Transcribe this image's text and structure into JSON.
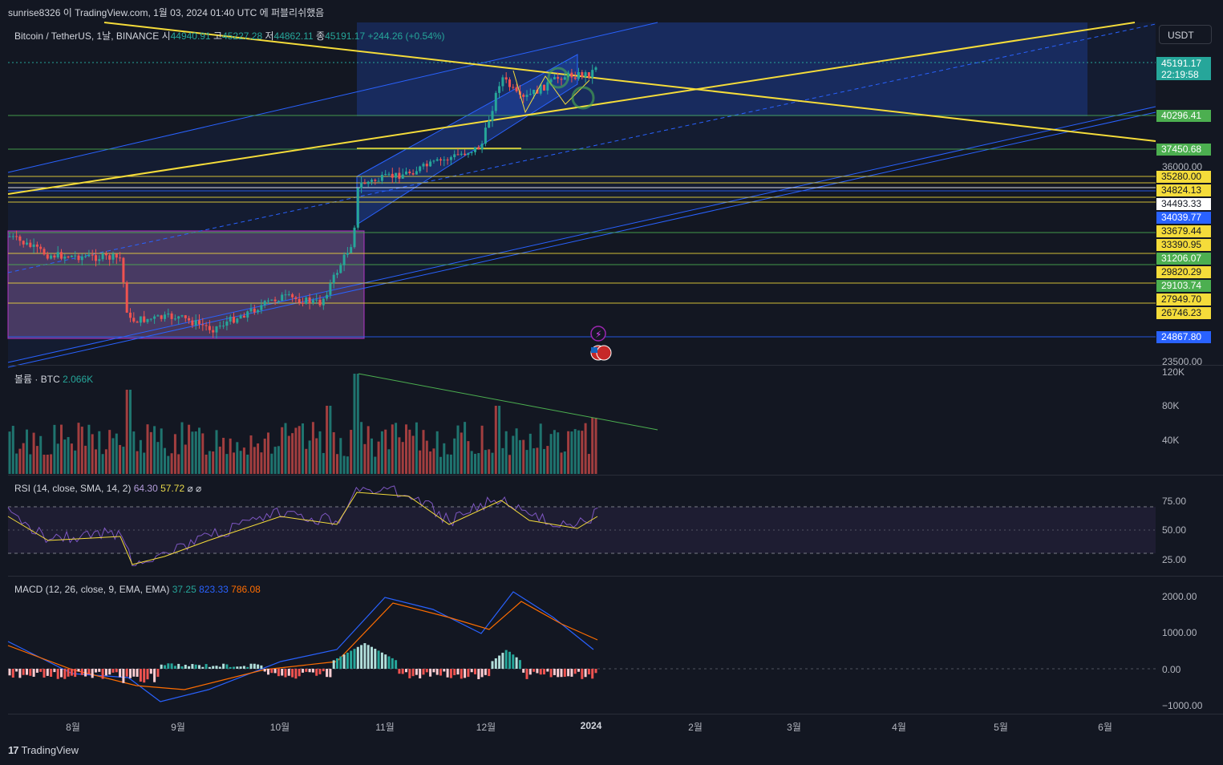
{
  "header": {
    "publish_line": "sunrise8326 이 TradingView.com, 1월 03, 2024 01:40 UTC 에 퍼블리쉬했음"
  },
  "colors": {
    "bg": "#131722",
    "up": "#26a69a",
    "down": "#ef5350",
    "trend_yellow": "#f5dc3a",
    "channel_blue": "#2962ff",
    "rsi": "#7e57c2",
    "macd": "#2962ff",
    "signal": "#ff6d00"
  },
  "main_legend": {
    "symbol": "Bitcoin / TetherUS, 1날, BINANCE",
    "open_label": "시",
    "open": "44940.91",
    "high_label": "고",
    "high": "45227.28",
    "low_label": "저",
    "low": "44862.11",
    "close_label": "종",
    "close": "45191.17",
    "change": "+244.26 (+0.54%)"
  },
  "currency_button": "USDT",
  "current_price": {
    "value": "45191.17",
    "countdown": "22:19:58"
  },
  "price_tags": [
    {
      "value": "40296.41",
      "bg": "#4caf50"
    },
    {
      "value": "37450.68",
      "bg": "#4caf50"
    },
    {
      "value": "35280.00",
      "bg": "#f5dc3a"
    },
    {
      "value": "34824.13",
      "bg": "#f5dc3a"
    },
    {
      "value": "34493.33",
      "bg": "#ffffff"
    },
    {
      "value": "34039.77",
      "bg": "#2962ff"
    },
    {
      "value": "33679.44",
      "bg": "#f5dc3a"
    },
    {
      "value": "33390.95",
      "bg": "#f5dc3a"
    },
    {
      "value": "31206.07",
      "bg": "#4caf50"
    },
    {
      "value": "29820.29",
      "bg": "#f5dc3a"
    },
    {
      "value": "29103.74",
      "bg": "#4caf50"
    },
    {
      "value": "27949.70",
      "bg": "#f5dc3a"
    },
    {
      "value": "26746.23",
      "bg": "#f5dc3a"
    },
    {
      "value": "24867.80",
      "bg": "#2962ff"
    }
  ],
  "price_axis_ticks": [
    "36000.00",
    "23500.00"
  ],
  "volume_legend": {
    "label": "볼륨 · BTC",
    "value": "2.066K"
  },
  "volume_axis_ticks": [
    "120K",
    "80K",
    "40K"
  ],
  "rsi_legend": {
    "label": "RSI (14, close, SMA, 14, 2)",
    "rsi": "64.30",
    "sma": "57.72",
    "extra": "⌀ ⌀"
  },
  "rsi_axis_ticks": [
    "75.00",
    "50.00",
    "25.00"
  ],
  "macd_legend": {
    "label": "MACD (12, 26, close, 9, EMA, EMA)",
    "hist": "37.25",
    "macd": "823.33",
    "signal": "786.08"
  },
  "macd_axis_ticks": [
    "2000.00",
    "1000.00",
    "0.00",
    "−1000.00"
  ],
  "x_axis_ticks": [
    "8월",
    "9월",
    "10월",
    "11월",
    "12월",
    "2024",
    "2월",
    "3월",
    "4월",
    "5월",
    "6월"
  ],
  "footer_logo": "TradingView",
  "chart_data": [
    {
      "type": "candlestick",
      "title": "Bitcoin / TetherUS, 1날, BINANCE",
      "x_range": [
        "2023-07-15",
        "2024-06-15"
      ],
      "ylim": [
        23500,
        46500
      ],
      "horizontal_levels": [
        40296.41,
        37450.68,
        35280.0,
        34824.13,
        34493.33,
        34039.77,
        33679.44,
        33390.95,
        31206.07,
        29820.29,
        29103.74,
        27949.7,
        26746.23,
        24867.8
      ],
      "approx_close_path": [
        {
          "x": "2023-07-15",
          "y": 30300
        },
        {
          "x": "2023-08-01",
          "y": 29700
        },
        {
          "x": "2023-08-15",
          "y": 29300
        },
        {
          "x": "2023-08-17",
          "y": 26600
        },
        {
          "x": "2023-09-01",
          "y": 25900
        },
        {
          "x": "2023-09-11",
          "y": 25100
        },
        {
          "x": "2023-10-01",
          "y": 27900
        },
        {
          "x": "2023-10-15",
          "y": 27300
        },
        {
          "x": "2023-10-22",
          "y": 30100
        },
        {
          "x": "2023-10-24",
          "y": 34500
        },
        {
          "x": "2023-11-10",
          "y": 36700
        },
        {
          "x": "2023-11-30",
          "y": 37700
        },
        {
          "x": "2023-12-05",
          "y": 44000
        },
        {
          "x": "2023-12-18",
          "y": 41300
        },
        {
          "x": "2024-01-02",
          "y": 45191.17
        }
      ],
      "current_value": 45191.17
    },
    {
      "type": "bar",
      "title": "볼륨 · BTC",
      "ylim": [
        0,
        120000
      ],
      "last_value": 2066
    },
    {
      "type": "line",
      "title": "RSI (14, close, SMA, 14, 2)",
      "ylim": [
        0,
        100
      ],
      "bands": [
        70,
        50,
        30
      ],
      "series": [
        {
          "name": "RSI",
          "last": 64.3
        },
        {
          "name": "SMA",
          "last": 57.72
        }
      ]
    },
    {
      "type": "line",
      "title": "MACD (12, 26, close, 9, EMA, EMA)",
      "ylim": [
        -1000,
        2200
      ],
      "series": [
        {
          "name": "Histogram",
          "last": 37.25
        },
        {
          "name": "MACD",
          "last": 823.33
        },
        {
          "name": "Signal",
          "last": 786.08
        }
      ]
    }
  ]
}
